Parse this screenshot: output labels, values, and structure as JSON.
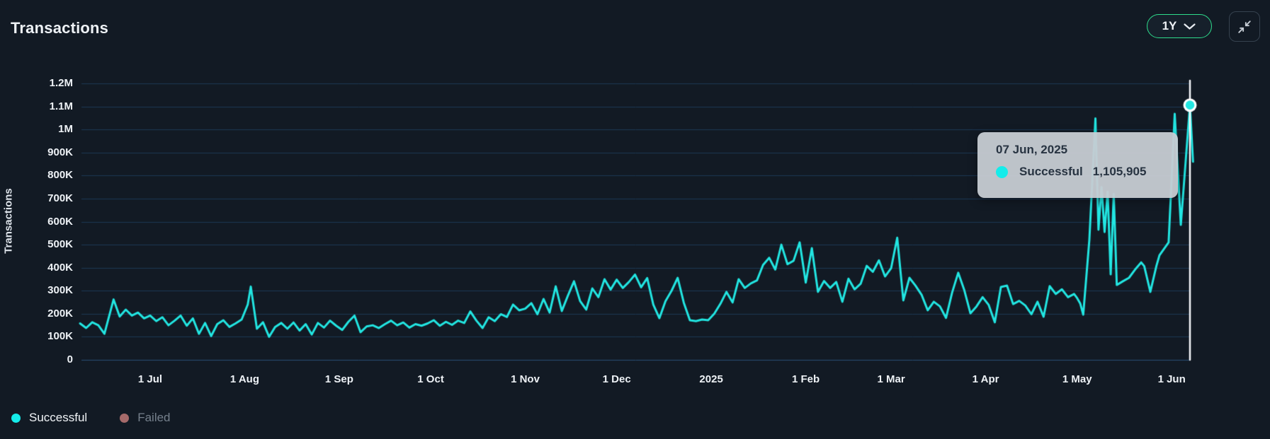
{
  "header": {
    "title": "Transactions",
    "range_value": "1Y"
  },
  "tooltip": {
    "date": "07 Jun, 2025",
    "series": "Successful",
    "value": "1,105,905"
  },
  "legend": [
    {
      "label": "Successful",
      "color": "#15ecea",
      "active": true
    },
    {
      "label": "Failed",
      "color": "#a56a6a",
      "active": false
    }
  ],
  "highlight": {
    "date": "2025-06-07",
    "value": 1105905
  },
  "colors": {
    "background": "#121a24",
    "gridline": "#1d3954",
    "zero_line": "#2a4f74",
    "line": "#22e6e2",
    "crosshair": "#f5f8fa",
    "accent_green": "#2edc8c",
    "tooltip_bg": "#c7ccd3"
  },
  "chart_data": {
    "type": "line",
    "title": "Transactions",
    "xlabel": "",
    "ylabel": "Transactions",
    "ylim": [
      0,
      1200000
    ],
    "x_domain": [
      "2024-06-08",
      "2025-06-07"
    ],
    "grid": true,
    "legend_position": "bottom-left",
    "y_ticks": [
      {
        "label": "0",
        "value": 0
      },
      {
        "label": "100K",
        "value": 100000
      },
      {
        "label": "200K",
        "value": 200000
      },
      {
        "label": "300K",
        "value": 300000
      },
      {
        "label": "400K",
        "value": 400000
      },
      {
        "label": "500K",
        "value": 500000
      },
      {
        "label": "600K",
        "value": 600000
      },
      {
        "label": "700K",
        "value": 700000
      },
      {
        "label": "800K",
        "value": 800000
      },
      {
        "label": "900K",
        "value": 900000
      },
      {
        "label": "1M",
        "value": 1000000
      },
      {
        "label": "1.1M",
        "value": 1100000
      },
      {
        "label": "1.2M",
        "value": 1200000
      }
    ],
    "x_ticks": [
      {
        "label": "1 Jul",
        "date": "2024-07-01"
      },
      {
        "label": "1 Aug",
        "date": "2024-08-01"
      },
      {
        "label": "1 Sep",
        "date": "2024-09-01"
      },
      {
        "label": "1 Oct",
        "date": "2024-10-01"
      },
      {
        "label": "1 Nov",
        "date": "2024-11-01"
      },
      {
        "label": "1 Dec",
        "date": "2024-12-01"
      },
      {
        "label": "2025",
        "date": "2025-01-01"
      },
      {
        "label": "1 Feb",
        "date": "2025-02-01"
      },
      {
        "label": "1 Mar",
        "date": "2025-03-01"
      },
      {
        "label": "1 Apr",
        "date": "2025-04-01"
      },
      {
        "label": "1 May",
        "date": "2025-05-01"
      },
      {
        "label": "1 Jun",
        "date": "2025-06-01"
      }
    ],
    "series": [
      {
        "name": "Successful",
        "color": "#22e6e2",
        "visible": true,
        "points": [
          [
            "2024-06-08",
            158000
          ],
          [
            "2024-06-10",
            138000
          ],
          [
            "2024-06-12",
            163000
          ],
          [
            "2024-06-14",
            150000
          ],
          [
            "2024-06-16",
            113000
          ],
          [
            "2024-06-19",
            262000
          ],
          [
            "2024-06-21",
            188000
          ],
          [
            "2024-06-23",
            218000
          ],
          [
            "2024-06-25",
            192000
          ],
          [
            "2024-06-27",
            205000
          ],
          [
            "2024-06-29",
            180000
          ],
          [
            "2024-07-01",
            192000
          ],
          [
            "2024-07-03",
            168000
          ],
          [
            "2024-07-05",
            185000
          ],
          [
            "2024-07-07",
            150000
          ],
          [
            "2024-07-09",
            170000
          ],
          [
            "2024-07-11",
            192000
          ],
          [
            "2024-07-13",
            148000
          ],
          [
            "2024-07-15",
            180000
          ],
          [
            "2024-07-17",
            113000
          ],
          [
            "2024-07-19",
            160000
          ],
          [
            "2024-07-21",
            103000
          ],
          [
            "2024-07-23",
            155000
          ],
          [
            "2024-07-25",
            172000
          ],
          [
            "2024-07-27",
            143000
          ],
          [
            "2024-07-29",
            158000
          ],
          [
            "2024-07-31",
            175000
          ],
          [
            "2024-08-02",
            240000
          ],
          [
            "2024-08-03",
            318000
          ],
          [
            "2024-08-05",
            135000
          ],
          [
            "2024-08-07",
            163000
          ],
          [
            "2024-08-09",
            100000
          ],
          [
            "2024-08-11",
            143000
          ],
          [
            "2024-08-13",
            160000
          ],
          [
            "2024-08-15",
            135000
          ],
          [
            "2024-08-17",
            162000
          ],
          [
            "2024-08-19",
            127000
          ],
          [
            "2024-08-21",
            155000
          ],
          [
            "2024-08-23",
            110000
          ],
          [
            "2024-08-25",
            160000
          ],
          [
            "2024-08-27",
            140000
          ],
          [
            "2024-08-29",
            170000
          ],
          [
            "2024-08-31",
            148000
          ],
          [
            "2024-09-02",
            130000
          ],
          [
            "2024-09-04",
            165000
          ],
          [
            "2024-09-06",
            192000
          ],
          [
            "2024-09-08",
            120000
          ],
          [
            "2024-09-10",
            145000
          ],
          [
            "2024-09-12",
            150000
          ],
          [
            "2024-09-14",
            138000
          ],
          [
            "2024-09-16",
            155000
          ],
          [
            "2024-09-18",
            170000
          ],
          [
            "2024-09-20",
            150000
          ],
          [
            "2024-09-22",
            162000
          ],
          [
            "2024-09-24",
            140000
          ],
          [
            "2024-09-26",
            155000
          ],
          [
            "2024-09-28",
            148000
          ],
          [
            "2024-09-30",
            158000
          ],
          [
            "2024-10-02",
            172000
          ],
          [
            "2024-10-04",
            148000
          ],
          [
            "2024-10-06",
            165000
          ],
          [
            "2024-10-08",
            152000
          ],
          [
            "2024-10-10",
            170000
          ],
          [
            "2024-10-12",
            160000
          ],
          [
            "2024-10-14",
            210000
          ],
          [
            "2024-10-16",
            170000
          ],
          [
            "2024-10-18",
            138000
          ],
          [
            "2024-10-20",
            185000
          ],
          [
            "2024-10-22",
            168000
          ],
          [
            "2024-10-24",
            198000
          ],
          [
            "2024-10-26",
            186000
          ],
          [
            "2024-10-28",
            240000
          ],
          [
            "2024-10-30",
            215000
          ],
          [
            "2024-11-01",
            222000
          ],
          [
            "2024-11-03",
            246000
          ],
          [
            "2024-11-05",
            198000
          ],
          [
            "2024-11-07",
            264000
          ],
          [
            "2024-11-09",
            205000
          ],
          [
            "2024-11-11",
            319000
          ],
          [
            "2024-11-13",
            212000
          ],
          [
            "2024-11-15",
            279000
          ],
          [
            "2024-11-17",
            341000
          ],
          [
            "2024-11-19",
            255000
          ],
          [
            "2024-11-21",
            218000
          ],
          [
            "2024-11-23",
            310000
          ],
          [
            "2024-11-25",
            272000
          ],
          [
            "2024-11-27",
            350000
          ],
          [
            "2024-11-29",
            305000
          ],
          [
            "2024-12-01",
            348000
          ],
          [
            "2024-12-03",
            312000
          ],
          [
            "2024-12-05",
            338000
          ],
          [
            "2024-12-07",
            370000
          ],
          [
            "2024-12-09",
            315000
          ],
          [
            "2024-12-11",
            355000
          ],
          [
            "2024-12-13",
            240000
          ],
          [
            "2024-12-15",
            181000
          ],
          [
            "2024-12-17",
            255000
          ],
          [
            "2024-12-19",
            300000
          ],
          [
            "2024-12-21",
            356000
          ],
          [
            "2024-12-23",
            248000
          ],
          [
            "2024-12-25",
            172000
          ],
          [
            "2024-12-27",
            168000
          ],
          [
            "2024-12-29",
            175000
          ],
          [
            "2024-12-31",
            172000
          ],
          [
            "2025-01-02",
            200000
          ],
          [
            "2025-01-04",
            243000
          ],
          [
            "2025-01-06",
            295000
          ],
          [
            "2025-01-08",
            249000
          ],
          [
            "2025-01-10",
            350000
          ],
          [
            "2025-01-12",
            312000
          ],
          [
            "2025-01-14",
            332000
          ],
          [
            "2025-01-16",
            345000
          ],
          [
            "2025-01-18",
            412000
          ],
          [
            "2025-01-20",
            443000
          ],
          [
            "2025-01-22",
            392000
          ],
          [
            "2025-01-24",
            500000
          ],
          [
            "2025-01-26",
            415000
          ],
          [
            "2025-01-28",
            430000
          ],
          [
            "2025-01-30",
            510000
          ],
          [
            "2025-02-01",
            335000
          ],
          [
            "2025-02-03",
            485000
          ],
          [
            "2025-02-05",
            295000
          ],
          [
            "2025-02-07",
            342000
          ],
          [
            "2025-02-09",
            312000
          ],
          [
            "2025-02-11",
            338000
          ],
          [
            "2025-02-13",
            252000
          ],
          [
            "2025-02-15",
            352000
          ],
          [
            "2025-02-17",
            306000
          ],
          [
            "2025-02-19",
            330000
          ],
          [
            "2025-02-21",
            408000
          ],
          [
            "2025-02-23",
            382000
          ],
          [
            "2025-02-25",
            432000
          ],
          [
            "2025-02-27",
            362000
          ],
          [
            "2025-03-01",
            398000
          ],
          [
            "2025-03-03",
            530000
          ],
          [
            "2025-03-05",
            258000
          ],
          [
            "2025-03-07",
            356000
          ],
          [
            "2025-03-09",
            322000
          ],
          [
            "2025-03-11",
            282000
          ],
          [
            "2025-03-13",
            215000
          ],
          [
            "2025-03-15",
            252000
          ],
          [
            "2025-03-17",
            232000
          ],
          [
            "2025-03-19",
            182000
          ],
          [
            "2025-03-21",
            292000
          ],
          [
            "2025-03-23",
            378000
          ],
          [
            "2025-03-25",
            302000
          ],
          [
            "2025-03-27",
            202000
          ],
          [
            "2025-03-29",
            232000
          ],
          [
            "2025-03-31",
            272000
          ],
          [
            "2025-04-02",
            238000
          ],
          [
            "2025-04-04",
            163000
          ],
          [
            "2025-04-06",
            316000
          ],
          [
            "2025-04-08",
            322000
          ],
          [
            "2025-04-10",
            242000
          ],
          [
            "2025-04-12",
            256000
          ],
          [
            "2025-04-14",
            236000
          ],
          [
            "2025-04-16",
            198000
          ],
          [
            "2025-04-18",
            252000
          ],
          [
            "2025-04-20",
            187000
          ],
          [
            "2025-04-22",
            320000
          ],
          [
            "2025-04-24",
            286000
          ],
          [
            "2025-04-26",
            306000
          ],
          [
            "2025-04-28",
            272000
          ],
          [
            "2025-04-30",
            286000
          ],
          [
            "2025-05-01",
            268000
          ],
          [
            "2025-05-02",
            245000
          ],
          [
            "2025-05-03",
            196000
          ],
          [
            "2025-05-05",
            520000
          ],
          [
            "2025-05-07",
            1048000
          ],
          [
            "2025-05-08",
            565000
          ],
          [
            "2025-05-09",
            750000
          ],
          [
            "2025-05-10",
            555000
          ],
          [
            "2025-05-11",
            730000
          ],
          [
            "2025-05-12",
            371000
          ],
          [
            "2025-05-13",
            720000
          ],
          [
            "2025-05-14",
            325000
          ],
          [
            "2025-05-16",
            341000
          ],
          [
            "2025-05-18",
            356000
          ],
          [
            "2025-05-20",
            392000
          ],
          [
            "2025-05-22",
            423000
          ],
          [
            "2025-05-23",
            407000
          ],
          [
            "2025-05-25",
            295000
          ],
          [
            "2025-05-27",
            408000
          ],
          [
            "2025-05-28",
            454000
          ],
          [
            "2025-05-31",
            510000
          ],
          [
            "2025-06-02",
            1068000
          ],
          [
            "2025-06-04",
            586000
          ],
          [
            "2025-06-07",
            1105905
          ],
          [
            "2025-06-08",
            860000
          ]
        ]
      },
      {
        "name": "Failed",
        "color": "#a56a6a",
        "visible": false,
        "points": []
      }
    ]
  }
}
